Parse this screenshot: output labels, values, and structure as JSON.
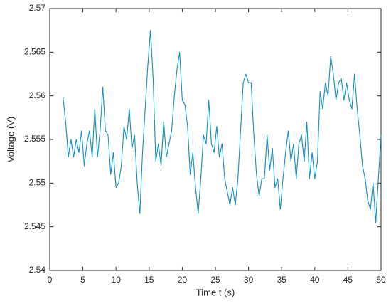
{
  "chart_data": {
    "type": "line",
    "xlabel": "Time t (s)",
    "ylabel": "Voltage (V)",
    "x": [
      2.0,
      2.4,
      2.8,
      3.2,
      3.6,
      4.0,
      4.4,
      4.8,
      5.2,
      5.6,
      6.0,
      6.4,
      6.8,
      7.2,
      7.6,
      8.0,
      8.4,
      8.8,
      9.2,
      9.6,
      10.0,
      10.4,
      10.8,
      11.2,
      11.6,
      12.0,
      12.4,
      12.8,
      13.2,
      13.6,
      14.0,
      14.4,
      14.8,
      15.2,
      15.6,
      16.0,
      16.4,
      16.8,
      17.2,
      17.6,
      18.0,
      18.4,
      18.8,
      19.2,
      19.6,
      20.0,
      20.4,
      20.8,
      21.2,
      21.6,
      22.0,
      22.4,
      22.8,
      23.2,
      23.6,
      24.0,
      24.4,
      24.8,
      25.2,
      25.6,
      26.0,
      26.4,
      26.8,
      27.2,
      27.6,
      28.0,
      28.4,
      28.8,
      29.2,
      29.6,
      30.0,
      30.4,
      30.8,
      31.2,
      31.6,
      32.0,
      32.4,
      32.8,
      33.2,
      33.6,
      34.0,
      34.4,
      34.8,
      35.2,
      35.6,
      36.0,
      36.4,
      36.8,
      37.2,
      37.6,
      38.0,
      38.4,
      38.8,
      39.2,
      39.6,
      40.0,
      40.4,
      40.8,
      41.2,
      41.6,
      42.0,
      42.4,
      42.8,
      43.2,
      43.6,
      44.0,
      44.4,
      44.8,
      45.2,
      45.6,
      46.0,
      46.4,
      46.8,
      47.2,
      47.6,
      48.0,
      48.4,
      48.8,
      49.2,
      49.6,
      50.0
    ],
    "series": [
      {
        "color": "#0e8fc0",
        "values": [
          2.5598,
          2.557,
          2.553,
          2.555,
          2.553,
          2.555,
          2.5535,
          2.556,
          2.552,
          2.5545,
          2.556,
          2.553,
          2.5585,
          2.553,
          2.556,
          2.561,
          2.556,
          2.5555,
          2.551,
          2.5535,
          2.5495,
          2.55,
          2.552,
          2.5565,
          2.555,
          2.5585,
          2.554,
          2.5555,
          2.55,
          2.5465,
          2.5535,
          2.5585,
          2.5635,
          2.5675,
          2.562,
          2.5525,
          2.5545,
          2.552,
          2.557,
          2.553,
          2.5545,
          2.556,
          2.56,
          2.563,
          2.565,
          2.5595,
          2.559,
          2.5565,
          2.551,
          2.5535,
          2.5495,
          2.5465,
          2.5505,
          2.5555,
          2.5545,
          2.5595,
          2.5545,
          2.5535,
          2.5565,
          2.553,
          2.5545,
          2.5505,
          2.549,
          2.5475,
          2.5495,
          2.5475,
          2.5505,
          2.556,
          2.5615,
          2.5625,
          2.5615,
          2.5615,
          2.5555,
          2.551,
          2.5485,
          2.5505,
          2.5505,
          2.5555,
          2.5515,
          2.554,
          2.5495,
          2.5505,
          2.547,
          2.5505,
          2.5535,
          2.556,
          2.5525,
          2.5545,
          2.5505,
          2.5545,
          2.5555,
          2.5525,
          2.557,
          2.5505,
          2.5535,
          2.5505,
          2.5525,
          2.5605,
          2.5585,
          2.5615,
          2.56,
          2.5645,
          2.5625,
          2.5595,
          2.5615,
          2.562,
          2.5595,
          2.5615,
          2.5595,
          2.5585,
          2.5625,
          2.5585,
          2.5555,
          2.552,
          2.5505,
          2.548,
          2.547,
          2.55,
          2.5455,
          2.5505,
          2.5555
        ]
      }
    ],
    "xlim": [
      0,
      50
    ],
    "xticks": [
      0,
      5,
      10,
      15,
      20,
      25,
      30,
      35,
      40,
      45,
      50
    ],
    "ylim": [
      2.54,
      2.57
    ],
    "yticks": [
      2.54,
      2.545,
      2.55,
      2.555,
      2.56,
      2.565,
      2.57
    ]
  }
}
